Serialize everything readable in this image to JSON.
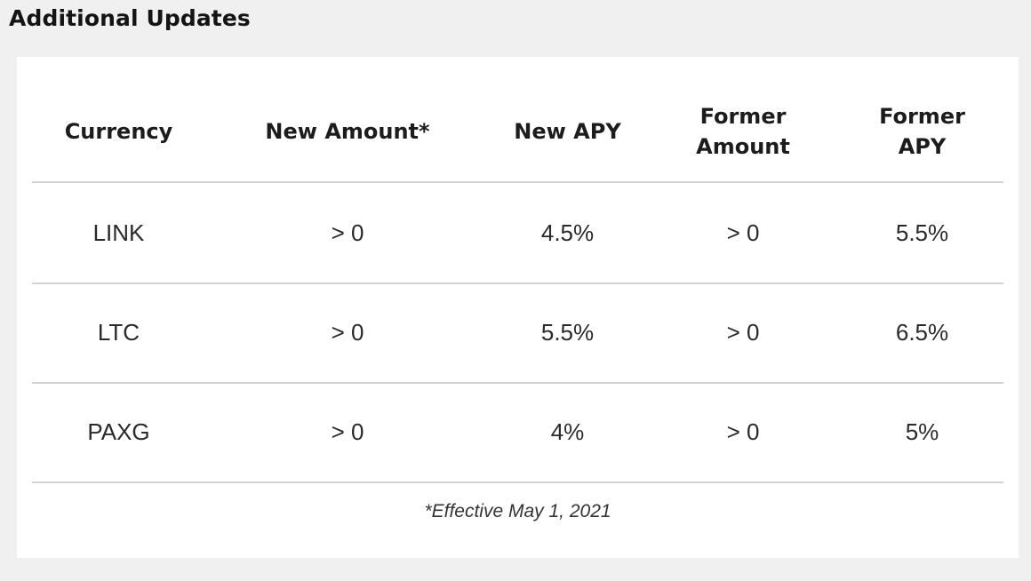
{
  "heading": "Additional Updates",
  "table": {
    "headers": {
      "currency": [
        "Currency"
      ],
      "new_amount": [
        "New Amount*"
      ],
      "new_apy": [
        "New APY"
      ],
      "former_amount": [
        "Former",
        "Amount"
      ],
      "former_apy": [
        "Former",
        "APY"
      ]
    },
    "rows": [
      {
        "currency": "LINK",
        "new_amount": "> 0",
        "new_apy": "4.5%",
        "former_amount": "> 0",
        "former_apy": "5.5%"
      },
      {
        "currency": "LTC",
        "new_amount": "> 0",
        "new_apy": "5.5%",
        "former_amount": "> 0",
        "former_apy": "6.5%"
      },
      {
        "currency": "PAXG",
        "new_amount": "> 0",
        "new_apy": "4%",
        "former_amount": "> 0",
        "former_apy": "5%"
      }
    ]
  },
  "footnote": "*Effective May 1, 2021",
  "colors": {
    "page_background": "#f0f0f0",
    "card_background": "#ffffff",
    "divider": "#d3d3d3",
    "text": "#1a1a1a"
  }
}
